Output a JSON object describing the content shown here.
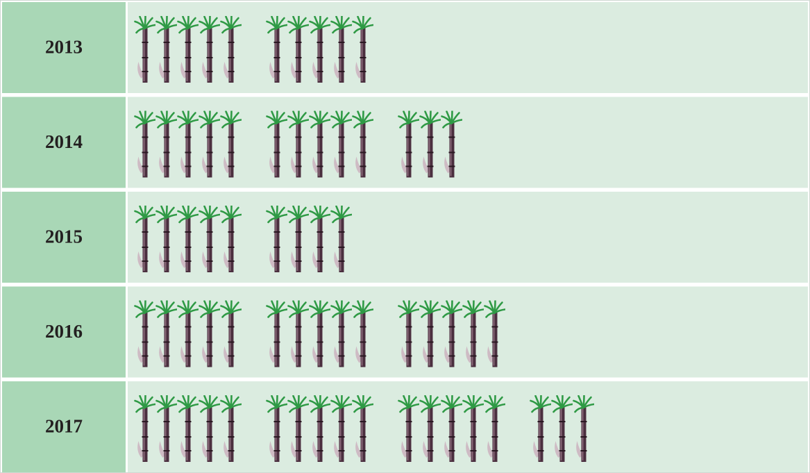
{
  "chart_data": {
    "type": "pictograph",
    "categories": [
      "2013",
      "2014",
      "2015",
      "2016",
      "2017"
    ],
    "values": [
      10,
      13,
      9,
      15,
      18
    ]
  }
}
